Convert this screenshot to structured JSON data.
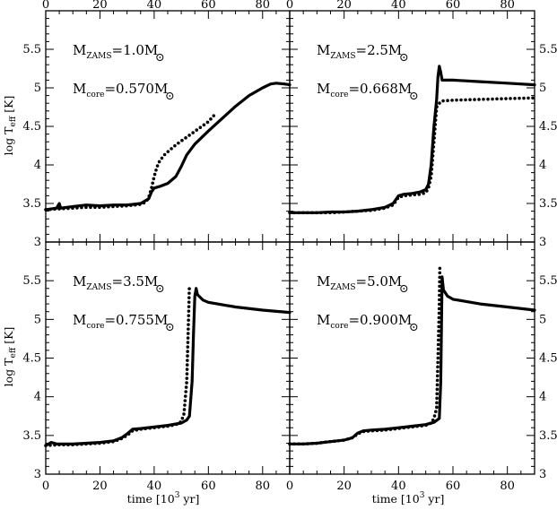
{
  "figure": {
    "xlabel_main": "time [10",
    "xlabel_exp": "3",
    "xlabel_tail": " yr]",
    "ylabel_main": "log T",
    "ylabel_sub": "eff",
    "ylabel_tail": " [K]"
  },
  "chart_data": [
    {
      "type": "line",
      "panel": "top-left",
      "annotation": {
        "mzams_value": "=1.0M",
        "mcore_value": "=0.570M"
      },
      "xlim": [
        0,
        90
      ],
      "ylim": [
        3,
        6
      ],
      "xticks": [
        0,
        20,
        40,
        60,
        80
      ],
      "yticks": [
        3,
        3.5,
        4,
        4.5,
        5,
        5.5
      ],
      "series": [
        {
          "style": "solid",
          "points": [
            [
              0,
              3.42
            ],
            [
              4,
              3.44
            ],
            [
              5,
              3.5
            ],
            [
              5.5,
              3.44
            ],
            [
              10,
              3.46
            ],
            [
              15,
              3.48
            ],
            [
              20,
              3.47
            ],
            [
              25,
              3.48
            ],
            [
              30,
              3.48
            ],
            [
              35,
              3.5
            ],
            [
              38,
              3.56
            ],
            [
              39,
              3.65
            ],
            [
              40,
              3.7
            ],
            [
              42,
              3.72
            ],
            [
              45,
              3.76
            ],
            [
              48,
              3.85
            ],
            [
              50,
              3.98
            ],
            [
              52,
              4.13
            ],
            [
              55,
              4.27
            ],
            [
              60,
              4.44
            ],
            [
              65,
              4.6
            ],
            [
              70,
              4.76
            ],
            [
              75,
              4.9
            ],
            [
              80,
              5.0
            ],
            [
              83,
              5.05
            ],
            [
              85,
              5.06
            ],
            [
              88,
              5.05
            ],
            [
              90,
              5.04
            ]
          ]
        },
        {
          "style": "dotted",
          "points": [
            [
              0,
              3.42
            ],
            [
              5,
              3.43
            ],
            [
              10,
              3.44
            ],
            [
              15,
              3.45
            ],
            [
              20,
              3.45
            ],
            [
              25,
              3.46
            ],
            [
              30,
              3.47
            ],
            [
              33,
              3.48
            ],
            [
              35,
              3.49
            ],
            [
              37,
              3.52
            ],
            [
              38,
              3.58
            ],
            [
              39,
              3.7
            ],
            [
              40,
              3.85
            ],
            [
              41,
              3.97
            ],
            [
              42,
              4.05
            ],
            [
              44,
              4.14
            ],
            [
              46,
              4.2
            ],
            [
              48,
              4.26
            ],
            [
              50,
              4.31
            ],
            [
              52,
              4.36
            ],
            [
              54,
              4.41
            ],
            [
              56,
              4.46
            ],
            [
              58,
              4.51
            ],
            [
              60,
              4.56
            ],
            [
              62,
              4.64
            ]
          ]
        }
      ]
    },
    {
      "type": "line",
      "panel": "top-right",
      "annotation": {
        "mzams_value": "=2.5M",
        "mcore_value": "=0.668M"
      },
      "xlim": [
        0,
        90
      ],
      "ylim": [
        3,
        6
      ],
      "xticks": [
        0,
        20,
        40,
        60,
        80
      ],
      "yticks": [
        3,
        3.5,
        4,
        4.5,
        5,
        5.5
      ],
      "series": [
        {
          "style": "solid",
          "points": [
            [
              0,
              3.38
            ],
            [
              5,
              3.38
            ],
            [
              10,
              3.38
            ],
            [
              15,
              3.39
            ],
            [
              20,
              3.39
            ],
            [
              25,
              3.4
            ],
            [
              30,
              3.42
            ],
            [
              35,
              3.45
            ],
            [
              38,
              3.5
            ],
            [
              40,
              3.6
            ],
            [
              42,
              3.62
            ],
            [
              45,
              3.63
            ],
            [
              48,
              3.65
            ],
            [
              50,
              3.68
            ],
            [
              51,
              3.75
            ],
            [
              52,
              4.0
            ],
            [
              53,
              4.5
            ],
            [
              54,
              4.85
            ],
            [
              54.5,
              5.15
            ],
            [
              55,
              5.28
            ],
            [
              55.5,
              5.2
            ],
            [
              56,
              5.1
            ],
            [
              60,
              5.1
            ],
            [
              70,
              5.08
            ],
            [
              80,
              5.06
            ],
            [
              90,
              5.04
            ]
          ]
        },
        {
          "style": "dotted",
          "points": [
            [
              0,
              3.38
            ],
            [
              5,
              3.38
            ],
            [
              10,
              3.38
            ],
            [
              15,
              3.38
            ],
            [
              20,
              3.39
            ],
            [
              25,
              3.4
            ],
            [
              30,
              3.41
            ],
            [
              35,
              3.44
            ],
            [
              38,
              3.48
            ],
            [
              40,
              3.58
            ],
            [
              42,
              3.6
            ],
            [
              45,
              3.61
            ],
            [
              48,
              3.62
            ],
            [
              50,
              3.64
            ],
            [
              51,
              3.7
            ],
            [
              52,
              3.85
            ],
            [
              53,
              4.3
            ],
            [
              54,
              4.75
            ],
            [
              55,
              4.8
            ],
            [
              56,
              4.83
            ],
            [
              60,
              4.84
            ],
            [
              70,
              4.85
            ],
            [
              80,
              4.86
            ],
            [
              90,
              4.87
            ]
          ]
        }
      ]
    },
    {
      "type": "line",
      "panel": "bottom-left",
      "annotation": {
        "mzams_value": "=3.5M",
        "mcore_value": "=0.755M"
      },
      "xlim": [
        0,
        90
      ],
      "ylim": [
        3,
        6
      ],
      "xticks": [
        0,
        20,
        40,
        60,
        80
      ],
      "yticks": [
        3,
        3.5,
        4,
        4.5,
        5,
        5.5
      ],
      "series": [
        {
          "style": "solid",
          "points": [
            [
              0,
              3.37
            ],
            [
              2,
              3.41
            ],
            [
              4,
              3.39
            ],
            [
              10,
              3.39
            ],
            [
              15,
              3.4
            ],
            [
              20,
              3.41
            ],
            [
              25,
              3.43
            ],
            [
              28,
              3.47
            ],
            [
              30,
              3.52
            ],
            [
              32,
              3.58
            ],
            [
              35,
              3.59
            ],
            [
              40,
              3.61
            ],
            [
              45,
              3.63
            ],
            [
              50,
              3.66
            ],
            [
              52,
              3.7
            ],
            [
              53,
              3.75
            ],
            [
              54,
              4.2
            ],
            [
              54.5,
              4.8
            ],
            [
              55,
              5.3
            ],
            [
              55.5,
              5.4
            ],
            [
              56,
              5.32
            ],
            [
              58,
              5.25
            ],
            [
              60,
              5.22
            ],
            [
              70,
              5.16
            ],
            [
              80,
              5.12
            ],
            [
              90,
              5.09
            ]
          ]
        },
        {
          "style": "dotted",
          "points": [
            [
              0,
              3.37
            ],
            [
              5,
              3.38
            ],
            [
              10,
              3.38
            ],
            [
              15,
              3.39
            ],
            [
              20,
              3.4
            ],
            [
              25,
              3.42
            ],
            [
              28,
              3.46
            ],
            [
              30,
              3.5
            ],
            [
              32,
              3.56
            ],
            [
              35,
              3.58
            ],
            [
              40,
              3.6
            ],
            [
              45,
              3.62
            ],
            [
              48,
              3.64
            ],
            [
              50,
              3.68
            ],
            [
              51,
              3.78
            ],
            [
              52,
              4.2
            ],
            [
              52.5,
              4.8
            ],
            [
              53,
              5.45
            ]
          ]
        }
      ]
    },
    {
      "type": "line",
      "panel": "bottom-right",
      "annotation": {
        "mzams_value": "=5.0M",
        "mcore_value": "=0.900M"
      },
      "xlim": [
        0,
        90
      ],
      "ylim": [
        3,
        6
      ],
      "xticks": [
        0,
        20,
        40,
        60,
        80
      ],
      "yticks": [
        3,
        3.5,
        4,
        4.5,
        5,
        5.5
      ],
      "series": [
        {
          "style": "solid",
          "points": [
            [
              0,
              3.39
            ],
            [
              5,
              3.39
            ],
            [
              10,
              3.4
            ],
            [
              15,
              3.42
            ],
            [
              20,
              3.44
            ],
            [
              23,
              3.47
            ],
            [
              25,
              3.53
            ],
            [
              27,
              3.56
            ],
            [
              30,
              3.57
            ],
            [
              35,
              3.58
            ],
            [
              40,
              3.6
            ],
            [
              45,
              3.62
            ],
            [
              50,
              3.64
            ],
            [
              53,
              3.67
            ],
            [
              55,
              3.72
            ],
            [
              55.5,
              4.2
            ],
            [
              55.8,
              5.0
            ],
            [
              56,
              5.55
            ],
            [
              56.5,
              5.38
            ],
            [
              58,
              5.3
            ],
            [
              60,
              5.26
            ],
            [
              70,
              5.2
            ],
            [
              80,
              5.16
            ],
            [
              90,
              5.12
            ]
          ]
        },
        {
          "style": "dotted",
          "points": [
            [
              0,
              3.39
            ],
            [
              5,
              3.39
            ],
            [
              10,
              3.4
            ],
            [
              15,
              3.42
            ],
            [
              20,
              3.44
            ],
            [
              23,
              3.47
            ],
            [
              25,
              3.52
            ],
            [
              27,
              3.55
            ],
            [
              30,
              3.56
            ],
            [
              35,
              3.57
            ],
            [
              40,
              3.59
            ],
            [
              45,
              3.61
            ],
            [
              50,
              3.63
            ],
            [
              52,
              3.66
            ],
            [
              53,
              3.72
            ],
            [
              54,
              3.85
            ],
            [
              54.5,
              4.5
            ],
            [
              55,
              5.2
            ],
            [
              55.2,
              5.7
            ]
          ]
        }
      ]
    }
  ]
}
